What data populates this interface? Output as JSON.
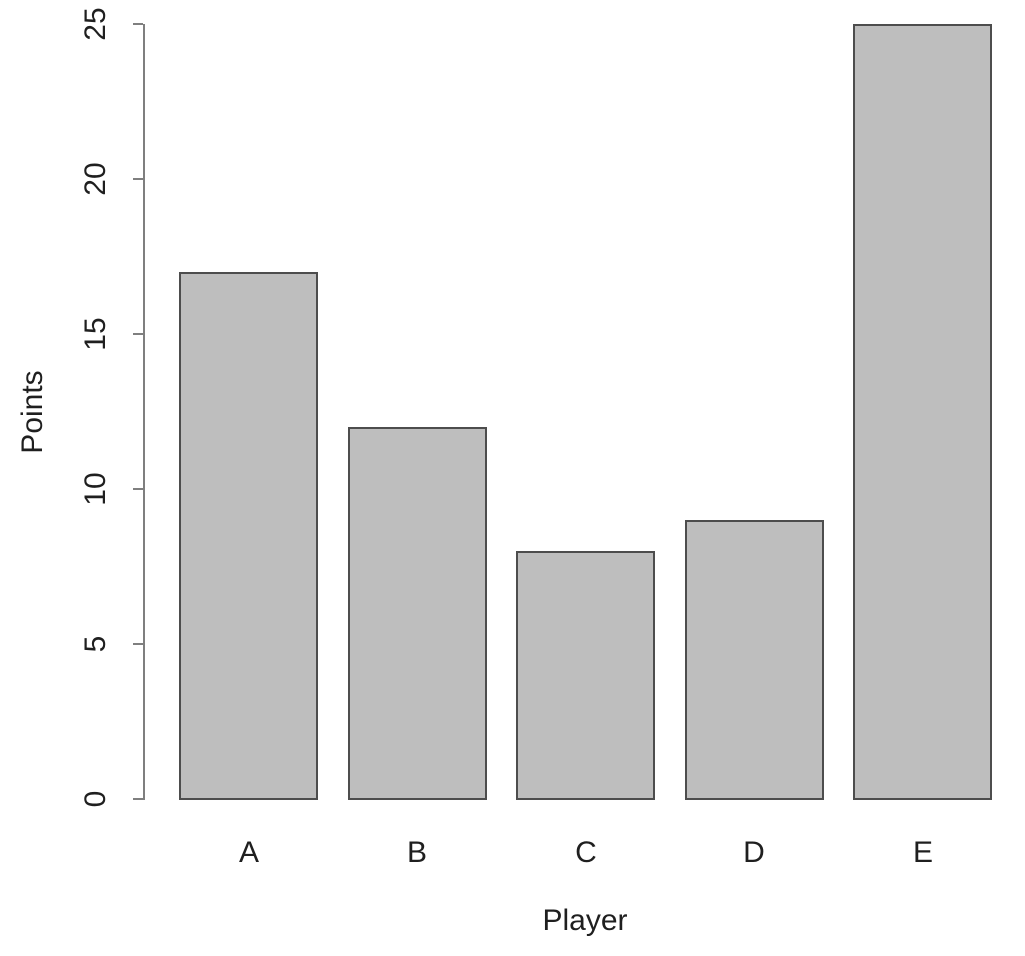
{
  "chart_data": {
    "type": "bar",
    "title": "",
    "xlabel": "Player",
    "ylabel": "Points",
    "categories": [
      "A",
      "B",
      "C",
      "D",
      "E"
    ],
    "values": [
      17,
      12,
      8,
      9,
      25
    ],
    "yticks": [
      0,
      5,
      10,
      15,
      20,
      25
    ],
    "ylim": [
      0,
      25
    ],
    "grid": false,
    "legend": null,
    "colors": {
      "bar_fill": "#bebebe",
      "bar_border": "#4d4d4d",
      "axis_line": "#7f7f7f",
      "text": "#1f1f1f",
      "background": "#ffffff"
    }
  }
}
